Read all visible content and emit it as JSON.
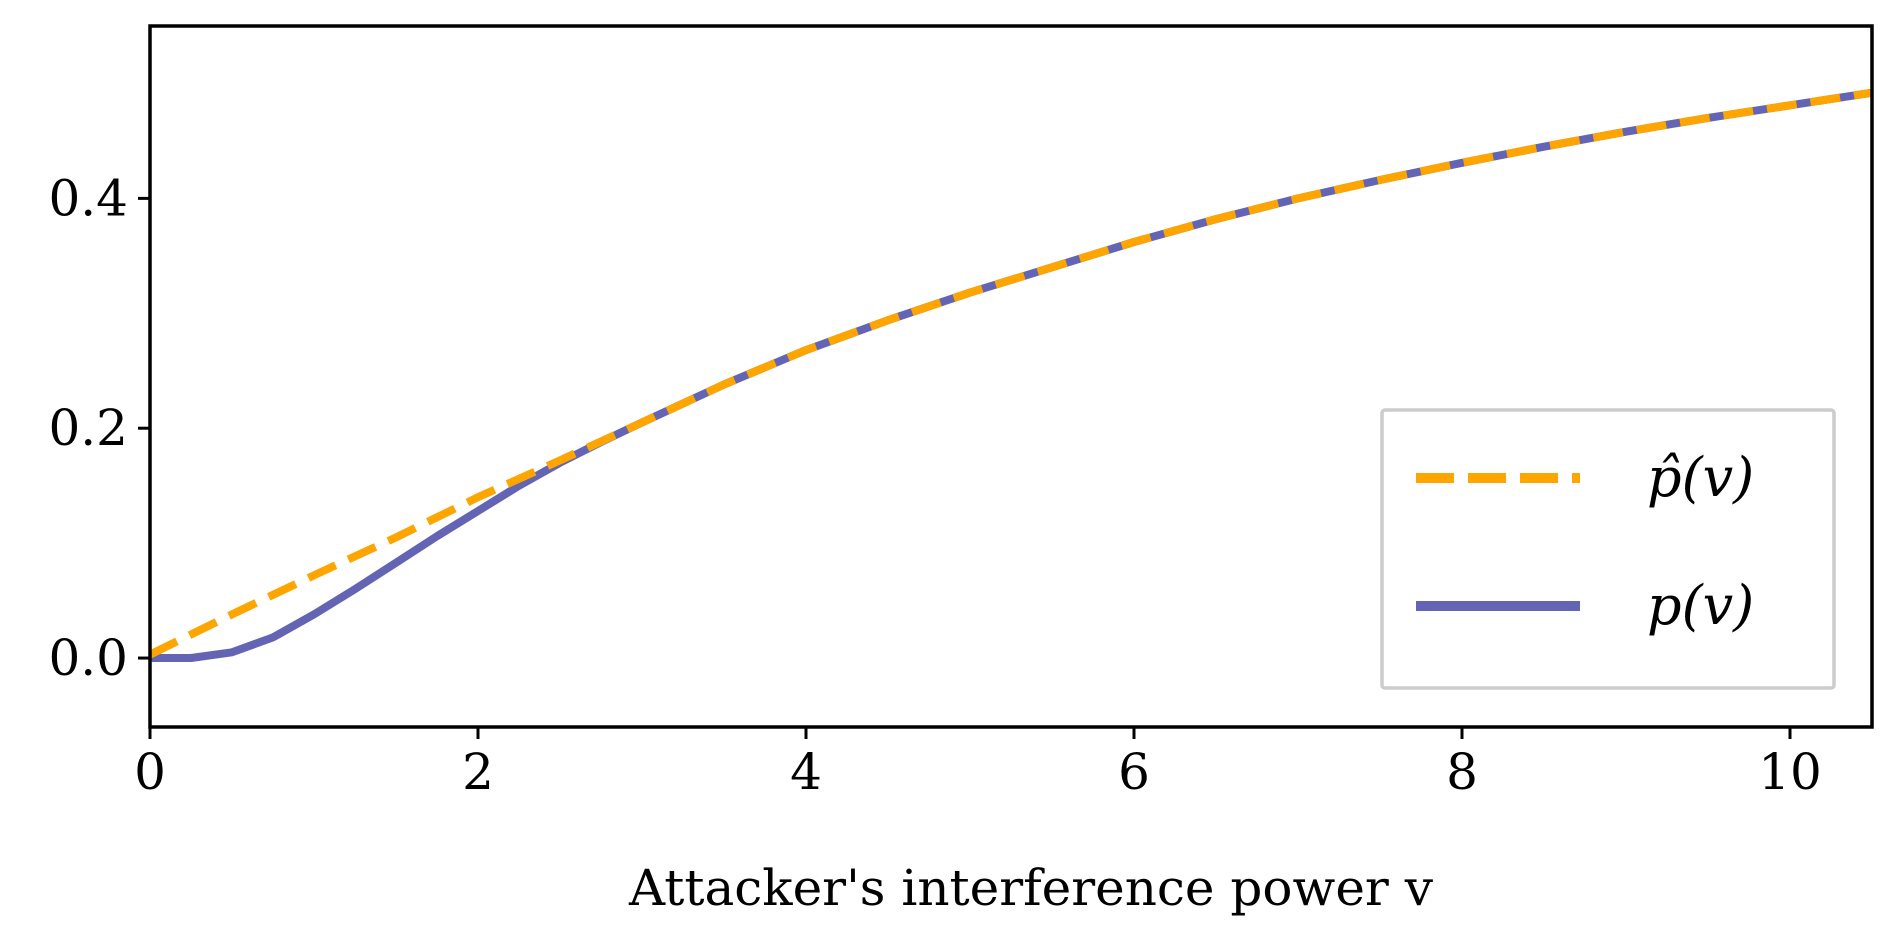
{
  "chart_data": {
    "type": "line",
    "title": "",
    "xlabel": "Attacker's interference power v",
    "ylabel": "",
    "xlim": [
      0,
      10.5
    ],
    "ylim": [
      -0.06,
      0.55
    ],
    "x_ticks": [
      0,
      2,
      4,
      6,
      8,
      10
    ],
    "x_tick_labels": [
      "0",
      "2",
      "4",
      "6",
      "8",
      "10"
    ],
    "y_ticks": [
      0.0,
      0.2,
      0.4
    ],
    "y_tick_labels": [
      "0.0",
      "0.2",
      "0.4"
    ],
    "grid": false,
    "legend_placement": "lower-right",
    "series": [
      {
        "name": "p̂(v)",
        "style": "dashed",
        "color": "#ffa500",
        "x": [
          0,
          0.5,
          1,
          1.5,
          2,
          2.5,
          3,
          3.5,
          4,
          4.5,
          5,
          5.5,
          6,
          6.5,
          7,
          7.5,
          8,
          8.5,
          9,
          9.5,
          10,
          10.5
        ],
        "y": [
          0.003,
          0.038,
          0.072,
          0.105,
          0.14,
          0.172,
          0.205,
          0.238,
          0.268,
          0.294,
          0.318,
          0.34,
          0.362,
          0.382,
          0.4,
          0.416,
          0.431,
          0.445,
          0.458,
          0.47,
          0.481,
          0.492
        ]
      },
      {
        "name": "p(v)",
        "style": "solid",
        "color": "#6464b4",
        "x": [
          0,
          0.25,
          0.5,
          0.75,
          1,
          1.25,
          1.5,
          1.75,
          2,
          2.25,
          2.5,
          2.75,
          3,
          3.5,
          4,
          4.5,
          5,
          5.5,
          6,
          6.5,
          7,
          7.5,
          8,
          8.5,
          9,
          9.5,
          10,
          10.5
        ],
        "y": [
          0.0,
          0.0,
          0.005,
          0.018,
          0.038,
          0.06,
          0.083,
          0.106,
          0.128,
          0.15,
          0.17,
          0.188,
          0.205,
          0.238,
          0.268,
          0.294,
          0.318,
          0.34,
          0.362,
          0.382,
          0.4,
          0.416,
          0.431,
          0.445,
          0.458,
          0.47,
          0.481,
          0.492
        ]
      }
    ]
  },
  "legend": {
    "items": [
      {
        "label": "p̂(v)",
        "color": "#ffa500",
        "style": "dashed"
      },
      {
        "label": "p(v)",
        "color": "#6464b4",
        "style": "solid"
      }
    ]
  }
}
